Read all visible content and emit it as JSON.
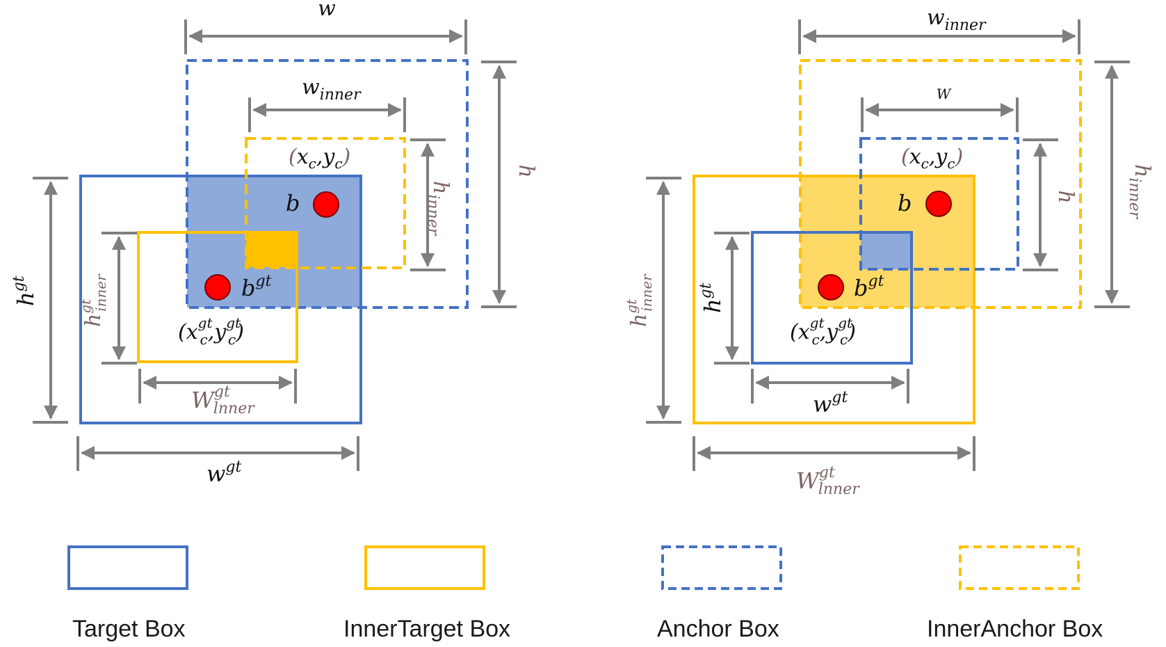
{
  "colors": {
    "blue": "#4472C4",
    "yellow": "#FFC000",
    "gray": "#7F7F7F",
    "brown": "#7B6464",
    "red": "#FF0000",
    "black": "#111111",
    "blue_fill": "#8EAADB",
    "yellow_fill": "#FFD966"
  },
  "left": {
    "w": "w",
    "w_inner": {
      "base": "w",
      "sub": "inner"
    },
    "h": "h",
    "h_inner": {
      "base": "h",
      "sub": "inner"
    },
    "center_anchor": {
      "open": "(",
      "x": "x",
      "x_sub": "c",
      "comma": ",",
      "y": "y",
      "y_sub": "c",
      "close": ")"
    },
    "b": "b",
    "b_gt": {
      "base": "b",
      "sup": "gt"
    },
    "center_gt": {
      "open": "(",
      "x": "x",
      "x_sup": "gt",
      "x_sub": "c",
      "comma": ",",
      "y": "y",
      "y_sup": "gt",
      "y_sub": "c",
      "close": ")"
    },
    "h_gt": {
      "base": "h",
      "sup": "gt"
    },
    "h_gt_inner": {
      "base": "h",
      "sup": "gt",
      "sub": "inner"
    },
    "w_gt_inner": {
      "base": "W",
      "sup": "gt",
      "sub": "lnner"
    },
    "w_gt": {
      "base": "w",
      "sup": "gt"
    }
  },
  "right": {
    "w_inner": {
      "base": "w",
      "sub": "inner"
    },
    "w": "W",
    "h": "h",
    "h_inner": {
      "base": "h",
      "sub": "inner"
    },
    "center_anchor": {
      "open": "(",
      "x": "x",
      "x_sub": "c",
      "comma": ",",
      "y": "y",
      "y_sub": "c",
      "close": ")"
    },
    "b": "b",
    "b_gt": {
      "base": "b",
      "sup": "gt"
    },
    "center_gt": {
      "open": "(",
      "x": "x",
      "x_sup": "gt",
      "x_sub": "c",
      "comma": ",",
      "y": "y",
      "y_sup": "gt",
      "y_sub": "c",
      "close": ")"
    },
    "h_gt": {
      "base": "h",
      "sup": "gt"
    },
    "h_gt_inner": {
      "base": "h",
      "sup": "gt",
      "sub": "inner"
    },
    "w_gt": {
      "base": "w",
      "sup": "gt"
    },
    "w_gt_inner": {
      "base": "W",
      "sup": "gt",
      "sub": "lnner"
    }
  },
  "legend": [
    {
      "label": "Target Box",
      "color": "#4472C4",
      "style": "solid"
    },
    {
      "label": "InnerTarget Box",
      "color": "#FFC000",
      "style": "solid"
    },
    {
      "label": "Anchor Box",
      "color": "#4472C4",
      "style": "dashed"
    },
    {
      "label": "InnerAnchor Box",
      "color": "#FFC000",
      "style": "dashed"
    }
  ]
}
